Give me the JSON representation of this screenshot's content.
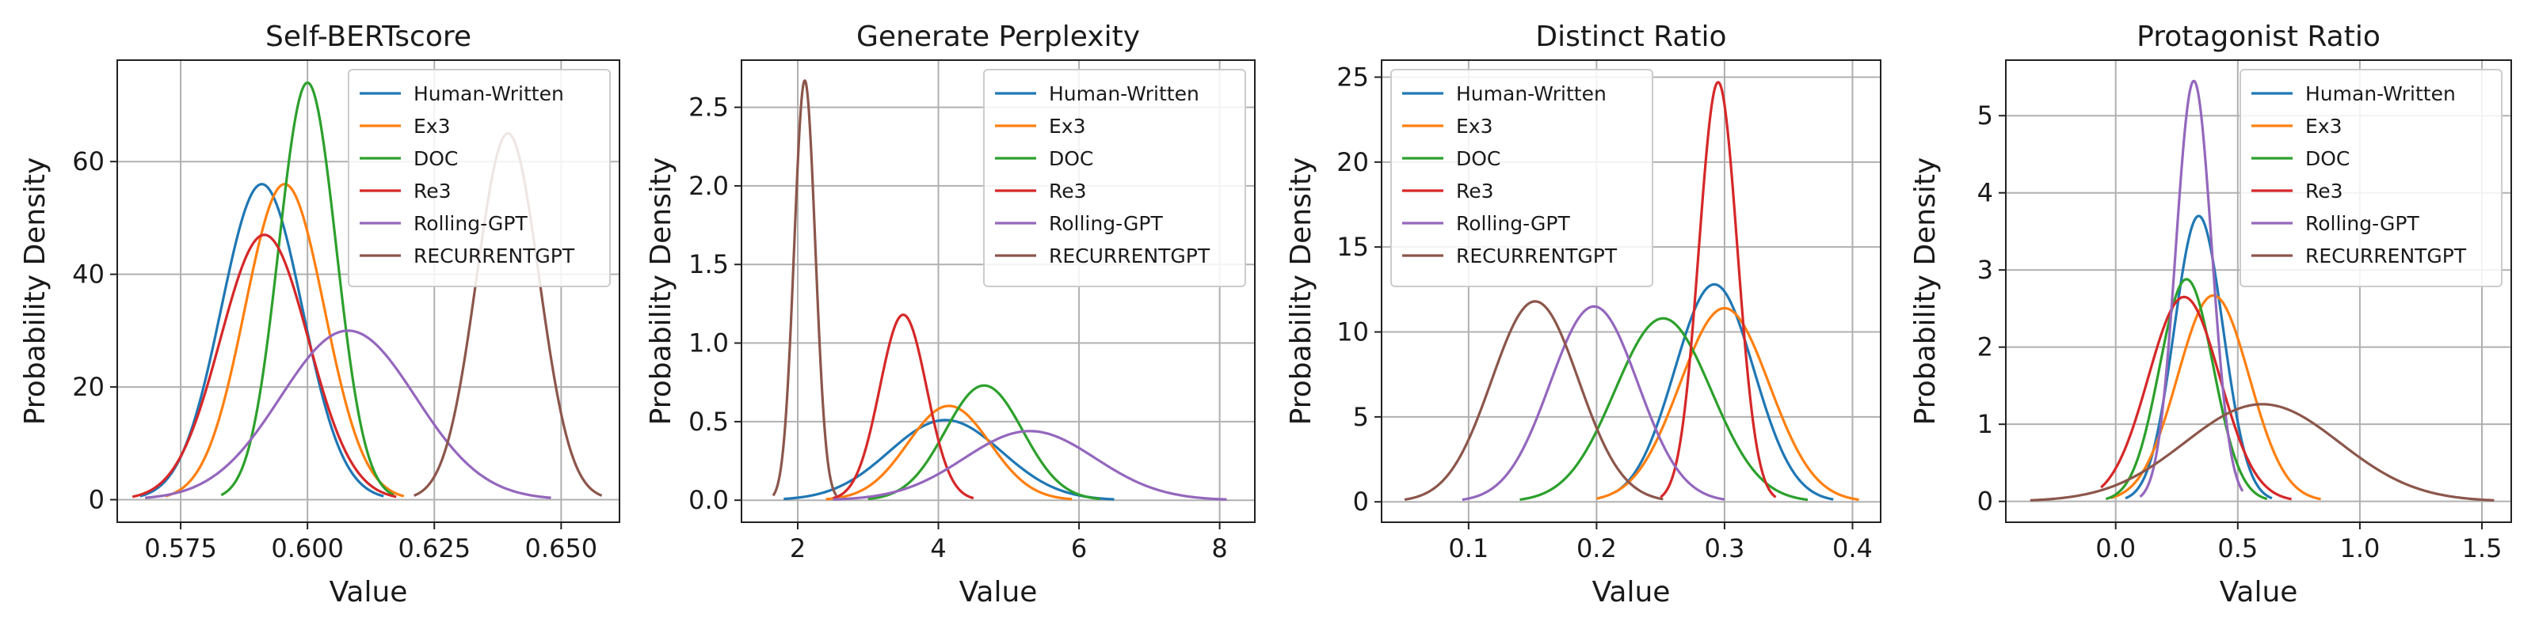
{
  "chart_data": [
    {
      "type": "line",
      "title": "Self-BERTscore",
      "xlabel": "Value",
      "ylabel": "Probability Density",
      "xlim": [
        0.5625,
        0.6615
      ],
      "ylim": [
        -4,
        78
      ],
      "xticks": [
        0.575,
        0.6,
        0.625,
        0.65
      ],
      "xtick_labels": [
        "0.575",
        "0.600",
        "0.625",
        "0.650"
      ],
      "yticks": [
        0,
        20,
        40,
        60
      ],
      "ytick_labels": [
        "0",
        "20",
        "40",
        "60"
      ],
      "grid": true,
      "legend_placement": "top-right",
      "series": [
        {
          "name": "Human-Written",
          "color": "#1f77b4",
          "mean": 0.591,
          "peak": 56.0,
          "xmin": 0.567,
          "xmax": 0.615
        },
        {
          "name": "Ex3",
          "color": "#ff7f0e",
          "mean": 0.5955,
          "peak": 56.0,
          "xmin": 0.572,
          "xmax": 0.619
        },
        {
          "name": "DOC",
          "color": "#2ca02c",
          "mean": 0.6,
          "peak": 74.0,
          "xmin": 0.583,
          "xmax": 0.617
        },
        {
          "name": "Re3",
          "color": "#d62728",
          "mean": 0.5915,
          "peak": 47.0,
          "xmin": 0.5655,
          "xmax": 0.6175
        },
        {
          "name": "Rolling-GPT",
          "color": "#9467bd",
          "mean": 0.608,
          "peak": 30.0,
          "xmin": 0.568,
          "xmax": 0.648
        },
        {
          "name": "RECURRENTGPT",
          "color": "#8c564b",
          "mean": 0.6395,
          "peak": 65.0,
          "xmin": 0.621,
          "xmax": 0.658
        }
      ]
    },
    {
      "type": "line",
      "title": "Generate Perplexity",
      "xlabel": "Value",
      "ylabel": "Probability Density",
      "xlim": [
        1.2,
        8.5
      ],
      "ylim": [
        -0.14,
        2.8
      ],
      "xticks": [
        2,
        4,
        6,
        8
      ],
      "xtick_labels": [
        "2",
        "4",
        "6",
        "8"
      ],
      "yticks": [
        0.0,
        0.5,
        1.0,
        1.5,
        2.0,
        2.5
      ],
      "ytick_labels": [
        "0.0",
        "0.5",
        "1.0",
        "1.5",
        "2.0",
        "2.5"
      ],
      "grid": true,
      "legend_placement": "top-right",
      "series": [
        {
          "name": "Human-Written",
          "color": "#1f77b4",
          "mean": 4.1,
          "peak": 0.51,
          "xmin": 1.8,
          "xmax": 6.5
        },
        {
          "name": "Ex3",
          "color": "#ff7f0e",
          "mean": 4.15,
          "peak": 0.6,
          "xmin": 2.4,
          "xmax": 5.9
        },
        {
          "name": "DOC",
          "color": "#2ca02c",
          "mean": 4.65,
          "peak": 0.73,
          "xmin": 3.0,
          "xmax": 6.3
        },
        {
          "name": "Re3",
          "color": "#d62728",
          "mean": 3.5,
          "peak": 1.18,
          "xmin": 2.5,
          "xmax": 4.5
        },
        {
          "name": "Rolling-GPT",
          "color": "#9467bd",
          "mean": 5.3,
          "peak": 0.44,
          "xmin": 2.5,
          "xmax": 8.1
        },
        {
          "name": "RECURRENTGPT",
          "color": "#8c564b",
          "mean": 2.1,
          "peak": 2.67,
          "xmin": 1.65,
          "xmax": 2.55
        }
      ]
    },
    {
      "type": "line",
      "title": "Distinct Ratio",
      "xlabel": "Value",
      "ylabel": "Probability Density",
      "xlim": [
        0.032,
        0.422
      ],
      "ylim": [
        -1.2,
        26
      ],
      "xticks": [
        0.1,
        0.2,
        0.3,
        0.4
      ],
      "xtick_labels": [
        "0.1",
        "0.2",
        "0.3",
        "0.4"
      ],
      "yticks": [
        0,
        5,
        10,
        15,
        20,
        25
      ],
      "ytick_labels": [
        "0",
        "5",
        "10",
        "15",
        "20",
        "25"
      ],
      "grid": true,
      "legend_placement": "top-left",
      "series": [
        {
          "name": "Human-Written",
          "color": "#1f77b4",
          "mean": 0.292,
          "peak": 12.8,
          "xmin": 0.215,
          "xmax": 0.385
        },
        {
          "name": "Ex3",
          "color": "#ff7f0e",
          "mean": 0.3,
          "peak": 11.4,
          "xmin": 0.2,
          "xmax": 0.405
        },
        {
          "name": "DOC",
          "color": "#2ca02c",
          "mean": 0.252,
          "peak": 10.8,
          "xmin": 0.14,
          "xmax": 0.365
        },
        {
          "name": "Re3",
          "color": "#d62728",
          "mean": 0.295,
          "peak": 24.7,
          "xmin": 0.25,
          "xmax": 0.34
        },
        {
          "name": "Rolling-GPT",
          "color": "#9467bd",
          "mean": 0.198,
          "peak": 11.5,
          "xmin": 0.095,
          "xmax": 0.3
        },
        {
          "name": "RECURRENTGPT",
          "color": "#8c564b",
          "mean": 0.152,
          "peak": 11.8,
          "xmin": 0.05,
          "xmax": 0.252
        }
      ]
    },
    {
      "type": "line",
      "title": "Protagonist Ratio",
      "xlabel": "Value",
      "ylabel": "Probability Density",
      "xlim": [
        -0.45,
        1.62
      ],
      "ylim": [
        -0.27,
        5.72
      ],
      "xticks": [
        0.0,
        0.5,
        1.0,
        1.5
      ],
      "xtick_labels": [
        "0.0",
        "0.5",
        "1.0",
        "1.5"
      ],
      "yticks": [
        0,
        1,
        2,
        3,
        4,
        5
      ],
      "ytick_labels": [
        "0",
        "1",
        "2",
        "3",
        "4",
        "5"
      ],
      "grid": true,
      "legend_placement": "top-right",
      "series": [
        {
          "name": "Human-Written",
          "color": "#1f77b4",
          "mean": 0.34,
          "peak": 3.7,
          "xmin": 0.04,
          "xmax": 0.64
        },
        {
          "name": "Ex3",
          "color": "#ff7f0e",
          "mean": 0.4,
          "peak": 2.67,
          "xmin": -0.02,
          "xmax": 0.84
        },
        {
          "name": "DOC",
          "color": "#2ca02c",
          "mean": 0.29,
          "peak": 2.88,
          "xmin": -0.04,
          "xmax": 0.62
        },
        {
          "name": "Re3",
          "color": "#d62728",
          "mean": 0.28,
          "peak": 2.65,
          "xmin": -0.06,
          "xmax": 0.72
        },
        {
          "name": "Rolling-GPT",
          "color": "#9467bd",
          "mean": 0.32,
          "peak": 5.45,
          "xmin": 0.1,
          "xmax": 0.52
        },
        {
          "name": "RECURRENTGPT",
          "color": "#8c564b",
          "mean": 0.6,
          "peak": 1.26,
          "xmin": -0.35,
          "xmax": 1.55
        }
      ]
    }
  ]
}
